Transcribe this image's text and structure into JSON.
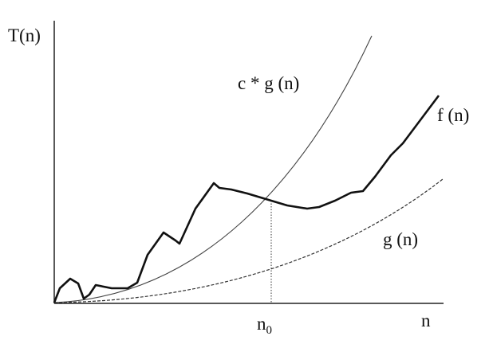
{
  "axis_labels": {
    "y": "T(n)",
    "x": "n"
  },
  "curves": {
    "cg": "c * g (n)",
    "f": "f (n)",
    "g": "g (n)"
  },
  "threshold": {
    "base": "n",
    "sub": "0"
  }
}
